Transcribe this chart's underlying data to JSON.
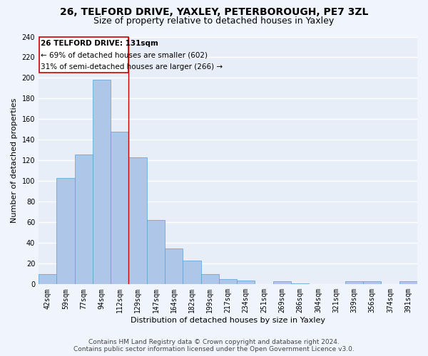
{
  "title": "26, TELFORD DRIVE, YAXLEY, PETERBOROUGH, PE7 3ZL",
  "subtitle": "Size of property relative to detached houses in Yaxley",
  "xlabel": "Distribution of detached houses by size in Yaxley",
  "ylabel": "Number of detached properties",
  "bar_labels": [
    "42sqm",
    "59sqm",
    "77sqm",
    "94sqm",
    "112sqm",
    "129sqm",
    "147sqm",
    "164sqm",
    "182sqm",
    "199sqm",
    "217sqm",
    "234sqm",
    "251sqm",
    "269sqm",
    "286sqm",
    "304sqm",
    "321sqm",
    "339sqm",
    "356sqm",
    "374sqm",
    "391sqm"
  ],
  "bar_values": [
    10,
    103,
    126,
    198,
    148,
    123,
    62,
    35,
    23,
    10,
    5,
    4,
    0,
    3,
    1,
    0,
    0,
    3,
    3,
    0,
    3
  ],
  "bar_color": "#aec6e8",
  "bar_edge_color": "#5a9fd4",
  "annotation_text_line1": "26 TELFORD DRIVE: 131sqm",
  "annotation_text_line2": "← 69% of detached houses are smaller (602)",
  "annotation_text_line3": "31% of semi-detached houses are larger (266) →",
  "annotation_box_color": "#cc0000",
  "ylim": [
    0,
    240
  ],
  "yticks": [
    0,
    20,
    40,
    60,
    80,
    100,
    120,
    140,
    160,
    180,
    200,
    220,
    240
  ],
  "footer_line1": "Contains HM Land Registry data © Crown copyright and database right 2024.",
  "footer_line2": "Contains public sector information licensed under the Open Government Licence v3.0.",
  "bg_color": "#e8eef8",
  "grid_color": "#ffffff",
  "fig_bg_color": "#f0f4fc",
  "title_fontsize": 10,
  "subtitle_fontsize": 9,
  "axis_label_fontsize": 8,
  "tick_fontsize": 7,
  "annotation_fontsize": 7.5,
  "footer_fontsize": 6.5
}
